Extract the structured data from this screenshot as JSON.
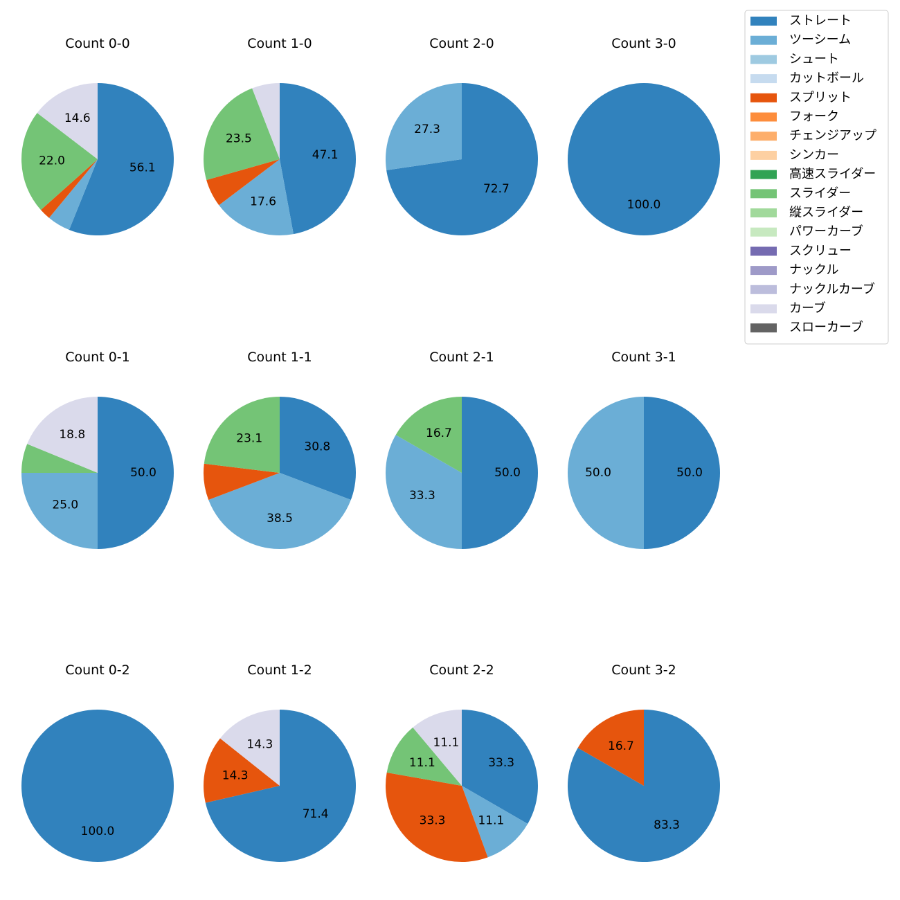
{
  "legend": [
    {
      "name": "ストレート",
      "color": "#3182bd"
    },
    {
      "name": "ツーシーム",
      "color": "#6baed6"
    },
    {
      "name": "シュート",
      "color": "#9ecae1"
    },
    {
      "name": "カットボール",
      "color": "#c6dbef"
    },
    {
      "name": "スプリット",
      "color": "#e6550d"
    },
    {
      "name": "フォーク",
      "color": "#fd8d3c"
    },
    {
      "name": "チェンジアップ",
      "color": "#fdae6b"
    },
    {
      "name": "シンカー",
      "color": "#fdd0a2"
    },
    {
      "name": "高速スライダー",
      "color": "#31a354"
    },
    {
      "name": "スライダー",
      "color": "#74c476"
    },
    {
      "name": "縦スライダー",
      "color": "#a1d99b"
    },
    {
      "name": "パワーカーブ",
      "color": "#c7e9c0"
    },
    {
      "name": "スクリュー",
      "color": "#756bb1"
    },
    {
      "name": "ナックル",
      "color": "#9e9ac8"
    },
    {
      "name": "ナックルカーブ",
      "color": "#bcbddc"
    },
    {
      "name": "カーブ",
      "color": "#dadaeb"
    },
    {
      "name": "スローカーブ",
      "color": "#636363"
    }
  ],
  "chart_data": [
    {
      "type": "pie",
      "title": "Count 0-0",
      "slices": [
        {
          "pitch": "ストレート",
          "value": 56.1,
          "label": "56.1"
        },
        {
          "pitch": "ツーシーム",
          "value": 4.9,
          "label": ""
        },
        {
          "pitch": "スプリット",
          "value": 2.4,
          "label": ""
        },
        {
          "pitch": "スライダー",
          "value": 22.0,
          "label": "22.0"
        },
        {
          "pitch": "カーブ",
          "value": 14.6,
          "label": "14.6"
        }
      ]
    },
    {
      "type": "pie",
      "title": "Count 1-0",
      "slices": [
        {
          "pitch": "ストレート",
          "value": 47.1,
          "label": "47.1"
        },
        {
          "pitch": "ツーシーム",
          "value": 17.6,
          "label": "17.6"
        },
        {
          "pitch": "スプリット",
          "value": 5.9,
          "label": ""
        },
        {
          "pitch": "スライダー",
          "value": 23.5,
          "label": "23.5"
        },
        {
          "pitch": "カーブ",
          "value": 5.9,
          "label": ""
        }
      ]
    },
    {
      "type": "pie",
      "title": "Count 2-0",
      "slices": [
        {
          "pitch": "ストレート",
          "value": 72.7,
          "label": "72.7"
        },
        {
          "pitch": "ツーシーム",
          "value": 27.3,
          "label": "27.3"
        }
      ]
    },
    {
      "type": "pie",
      "title": "Count 3-0",
      "slices": [
        {
          "pitch": "ストレート",
          "value": 100.0,
          "label": "100.0"
        }
      ]
    },
    {
      "type": "pie",
      "title": "Count 0-1",
      "slices": [
        {
          "pitch": "ストレート",
          "value": 50.0,
          "label": "50.0"
        },
        {
          "pitch": "ツーシーム",
          "value": 25.0,
          "label": "25.0"
        },
        {
          "pitch": "スライダー",
          "value": 6.2,
          "label": ""
        },
        {
          "pitch": "カーブ",
          "value": 18.8,
          "label": "18.8"
        }
      ]
    },
    {
      "type": "pie",
      "title": "Count 1-1",
      "slices": [
        {
          "pitch": "ストレート",
          "value": 30.8,
          "label": "30.8"
        },
        {
          "pitch": "ツーシーム",
          "value": 38.5,
          "label": "38.5"
        },
        {
          "pitch": "スプリット",
          "value": 7.7,
          "label": ""
        },
        {
          "pitch": "スライダー",
          "value": 23.1,
          "label": "23.1"
        }
      ]
    },
    {
      "type": "pie",
      "title": "Count 2-1",
      "slices": [
        {
          "pitch": "ストレート",
          "value": 50.0,
          "label": "50.0"
        },
        {
          "pitch": "ツーシーム",
          "value": 33.3,
          "label": "33.3"
        },
        {
          "pitch": "スライダー",
          "value": 16.7,
          "label": "16.7"
        }
      ]
    },
    {
      "type": "pie",
      "title": "Count 3-1",
      "slices": [
        {
          "pitch": "ストレート",
          "value": 50.0,
          "label": "50.0"
        },
        {
          "pitch": "ツーシーム",
          "value": 50.0,
          "label": "50.0"
        }
      ]
    },
    {
      "type": "pie",
      "title": "Count 0-2",
      "slices": [
        {
          "pitch": "ストレート",
          "value": 100.0,
          "label": "100.0"
        }
      ]
    },
    {
      "type": "pie",
      "title": "Count 1-2",
      "slices": [
        {
          "pitch": "ストレート",
          "value": 71.4,
          "label": "71.4"
        },
        {
          "pitch": "スプリット",
          "value": 14.3,
          "label": "14.3"
        },
        {
          "pitch": "カーブ",
          "value": 14.3,
          "label": "14.3"
        }
      ]
    },
    {
      "type": "pie",
      "title": "Count 2-2",
      "slices": [
        {
          "pitch": "ストレート",
          "value": 33.3,
          "label": "33.3"
        },
        {
          "pitch": "ツーシーム",
          "value": 11.1,
          "label": "11.1"
        },
        {
          "pitch": "スプリット",
          "value": 33.3,
          "label": "33.3"
        },
        {
          "pitch": "スライダー",
          "value": 11.1,
          "label": "11.1"
        },
        {
          "pitch": "カーブ",
          "value": 11.1,
          "label": "11.1"
        }
      ]
    },
    {
      "type": "pie",
      "title": "Count 3-2",
      "slices": [
        {
          "pitch": "ストレート",
          "value": 83.3,
          "label": "83.3"
        },
        {
          "pitch": "スプリット",
          "value": 16.7,
          "label": "16.7"
        }
      ]
    }
  ]
}
